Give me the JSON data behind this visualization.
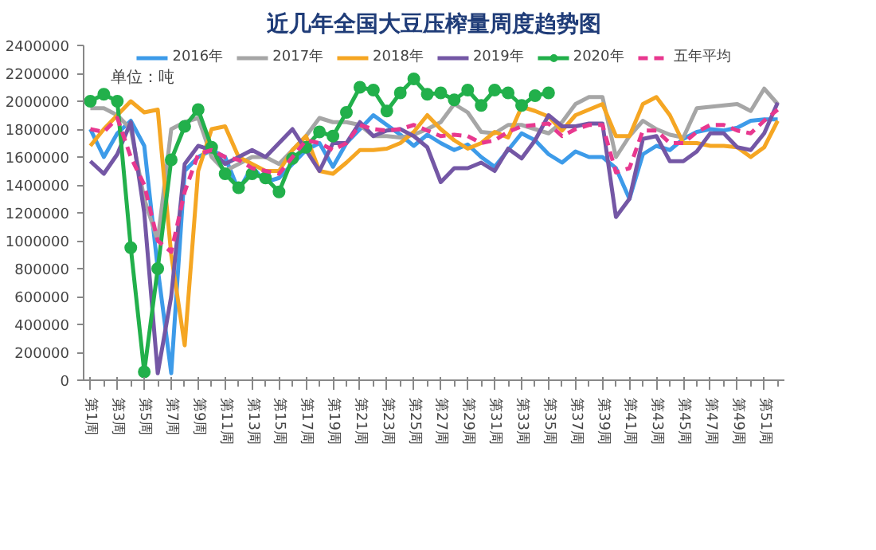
{
  "chart_data": {
    "type": "line",
    "title": "近几年全国大豆压榨量周度趋势图",
    "annotations": [
      "单位：吨"
    ],
    "categories": [
      "第1周",
      null,
      "第3周",
      null,
      "第5周",
      null,
      "第7周",
      null,
      "第9周",
      null,
      "第11周",
      null,
      "第13周",
      null,
      "第15周",
      null,
      "第17周",
      null,
      "第19周",
      null,
      "第21周",
      null,
      "第23周",
      null,
      "第25周",
      null,
      "第27周",
      null,
      "第29周",
      null,
      "第31周",
      null,
      "第33周",
      null,
      "第35周",
      null,
      "第37周",
      null,
      "第39周",
      null,
      "第41周",
      null,
      "第43周",
      null,
      "第45周",
      null,
      "第47周",
      null,
      "第49周",
      null,
      "第51周",
      null
    ],
    "ylim": [
      0,
      2400000
    ],
    "yticks": [
      0,
      200000,
      400000,
      600000,
      800000,
      1000000,
      1200000,
      1400000,
      1600000,
      1800000,
      2000000,
      2200000,
      2400000
    ],
    "grid": false,
    "legend": "top",
    "marker": "none",
    "line_style": "solid",
    "series": [
      {
        "name": "2016年",
        "color": "#3d9be9",
        "values": [
          1800000,
          1600000,
          1770000,
          1860000,
          1680000,
          800000,
          50000,
          1500000,
          1600000,
          1650000,
          1600000,
          1360000,
          1530000,
          1420000,
          1450000,
          1550000,
          1650000,
          1700000,
          1530000,
          1700000,
          1800000,
          1900000,
          1830000,
          1760000,
          1680000,
          1760000,
          1700000,
          1650000,
          1690000,
          1600000,
          1530000,
          1650000,
          1770000,
          1720000,
          1620000,
          1560000,
          1640000,
          1600000,
          1600000,
          1520000,
          1300000,
          1620000,
          1680000,
          1650000,
          1730000,
          1780000,
          1800000,
          1790000,
          1810000,
          1860000,
          1870000,
          1870000
        ]
      },
      {
        "name": "2017年",
        "color": "#a6a6a6",
        "values": [
          1950000,
          1950000,
          1900000,
          1800000,
          1300000,
          1000000,
          1800000,
          1850000,
          1880000,
          1600000,
          1500000,
          1550000,
          1600000,
          1600000,
          1550000,
          1650000,
          1750000,
          1880000,
          1850000,
          1850000,
          1830000,
          1750000,
          1750000,
          1740000,
          1760000,
          1800000,
          1850000,
          1980000,
          1920000,
          1780000,
          1770000,
          1830000,
          1830000,
          1800000,
          1770000,
          1850000,
          1980000,
          2030000,
          2030000,
          1600000,
          1750000,
          1860000,
          1800000,
          1760000,
          1740000,
          1950000,
          1960000,
          1970000,
          1980000,
          1930000,
          2090000,
          1980000
        ]
      },
      {
        "name": "2018年",
        "color": "#f5a623",
        "values": [
          1680000,
          1800000,
          1900000,
          2000000,
          1920000,
          1940000,
          900000,
          250000,
          1500000,
          1800000,
          1820000,
          1600000,
          1550000,
          1500000,
          1500000,
          1650000,
          1750000,
          1500000,
          1480000,
          1560000,
          1650000,
          1650000,
          1660000,
          1700000,
          1780000,
          1900000,
          1800000,
          1720000,
          1660000,
          1700000,
          1780000,
          1740000,
          1960000,
          1930000,
          1890000,
          1790000,
          1900000,
          1940000,
          1980000,
          1750000,
          1750000,
          1980000,
          2030000,
          1900000,
          1700000,
          1700000,
          1680000,
          1680000,
          1670000,
          1600000,
          1670000,
          1860000
        ]
      },
      {
        "name": "2019年",
        "color": "#7457a5",
        "values": [
          1570000,
          1480000,
          1620000,
          1850000,
          1200000,
          50000,
          600000,
          1550000,
          1680000,
          1650000,
          1550000,
          1600000,
          1650000,
          1600000,
          1700000,
          1800000,
          1650000,
          1500000,
          1700000,
          1700000,
          1850000,
          1750000,
          1790000,
          1800000,
          1750000,
          1670000,
          1420000,
          1520000,
          1520000,
          1560000,
          1500000,
          1660000,
          1590000,
          1720000,
          1900000,
          1820000,
          1820000,
          1840000,
          1840000,
          1170000,
          1300000,
          1730000,
          1750000,
          1570000,
          1570000,
          1640000,
          1770000,
          1770000,
          1670000,
          1650000,
          1770000,
          1990000
        ]
      },
      {
        "name": "2020年",
        "color": "#22b04b",
        "marker": "circle",
        "values": [
          2000000,
          2050000,
          2000000,
          950000,
          60000,
          800000,
          1580000,
          1820000,
          1940000,
          1670000,
          1480000,
          1380000,
          1480000,
          1450000,
          1350000,
          1590000,
          1670000,
          1780000,
          1750000,
          1920000,
          2100000,
          2080000,
          1930000,
          2060000,
          2160000,
          2050000,
          2060000,
          2010000,
          2080000,
          1970000,
          2080000,
          2060000,
          1970000,
          2040000,
          2060000,
          null,
          null,
          null,
          null,
          null,
          null,
          null,
          null,
          null,
          null,
          null,
          null,
          null,
          null,
          null,
          null,
          null
        ]
      },
      {
        "name": "五年平均",
        "color": "#e8388f",
        "line_style": "dashed",
        "values": [
          1800000,
          1780000,
          1880000,
          1600000,
          1400000,
          1000000,
          920000,
          1350000,
          1620000,
          1650000,
          1600000,
          1580000,
          1520000,
          1500000,
          1480000,
          1600000,
          1720000,
          1700000,
          1650000,
          1700000,
          1830000,
          1800000,
          1790000,
          1800000,
          1830000,
          1790000,
          1750000,
          1760000,
          1750000,
          1700000,
          1720000,
          1780000,
          1820000,
          1830000,
          1840000,
          1750000,
          1800000,
          1830000,
          1830000,
          1490000,
          1520000,
          1790000,
          1790000,
          1700000,
          1700000,
          1780000,
          1830000,
          1830000,
          1790000,
          1770000,
          1860000,
          1940000
        ]
      }
    ]
  }
}
